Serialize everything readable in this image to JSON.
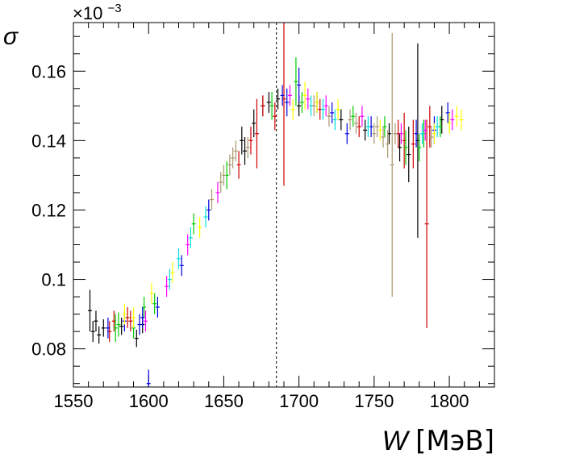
{
  "chart_data": {
    "type": "scatter",
    "title": "",
    "xlabel_main": "W",
    "xlabel_unit": "[МэВ]",
    "ylabel": "σ",
    "y_multiplier_base": "×10",
    "y_multiplier_exp": "−3",
    "xlim": [
      1550,
      1830
    ],
    "ylim": [
      0.069,
      0.174
    ],
    "x_ticks": [
      1550,
      1600,
      1650,
      1700,
      1750,
      1800
    ],
    "x_tick_labels": [
      "1550",
      "1600",
      "1650",
      "1700",
      "1750",
      "1800"
    ],
    "y_ticks": [
      0.08,
      0.1,
      0.12,
      0.14,
      0.16
    ],
    "y_tick_labels": [
      "0.08",
      "0.1",
      "0.12",
      "0.14",
      "0.16"
    ],
    "grid": false,
    "reference_line_x": 1685,
    "series": [
      {
        "color": "#000000",
        "points": [
          [
            1561,
            0.091,
            0.006
          ],
          [
            1563,
            0.085,
            0.003
          ],
          [
            1565,
            0.088,
            0.003
          ],
          [
            1567,
            0.084,
            0.0025
          ],
          [
            1570,
            0.086,
            0.0025
          ],
          [
            1582,
            0.0865,
            0.0025
          ],
          [
            1592,
            0.083,
            0.0025
          ],
          [
            1596,
            0.087,
            0.0025
          ],
          [
            1662,
            0.14,
            0.004
          ],
          [
            1664,
            0.137,
            0.004
          ],
          [
            1670,
            0.145,
            0.004
          ],
          [
            1676,
            0.15,
            0.003
          ],
          [
            1680,
            0.151,
            0.003
          ],
          [
            1686,
            0.152,
            0.003
          ],
          [
            1700,
            0.15,
            0.003
          ],
          [
            1712,
            0.151,
            0.003
          ],
          [
            1728,
            0.146,
            0.003
          ],
          [
            1744,
            0.143,
            0.003
          ],
          [
            1760,
            0.142,
            0.003
          ],
          [
            1767,
            0.138,
            0.004
          ],
          [
            1773,
            0.136,
            0.008
          ],
          [
            1779,
            0.14,
            0.028
          ],
          [
            1795,
            0.146,
            0.004
          ]
        ]
      },
      {
        "color": "#d00000",
        "points": [
          [
            1574,
            0.085,
            0.003
          ],
          [
            1577,
            0.088,
            0.003
          ],
          [
            1586,
            0.089,
            0.003
          ],
          [
            1588,
            0.088,
            0.003
          ],
          [
            1660,
            0.133,
            0.004
          ],
          [
            1668,
            0.14,
            0.004
          ],
          [
            1672,
            0.142,
            0.01
          ],
          [
            1676,
            0.15,
            0.003
          ],
          [
            1684,
            0.147,
            0.004
          ],
          [
            1690,
            0.152,
            0.025
          ],
          [
            1714,
            0.149,
            0.003
          ],
          [
            1740,
            0.144,
            0.003
          ],
          [
            1766,
            0.142,
            0.004
          ],
          [
            1770,
            0.14,
            0.008
          ],
          [
            1776,
            0.139,
            0.007
          ],
          [
            1785,
            0.116,
            0.03
          ],
          [
            1787,
            0.144,
            0.006
          ]
        ]
      },
      {
        "color": "#00cc00",
        "points": [
          [
            1578,
            0.086,
            0.004
          ],
          [
            1580,
            0.087,
            0.0035
          ],
          [
            1590,
            0.086,
            0.003
          ],
          [
            1597,
            0.092,
            0.003
          ],
          [
            1604,
            0.093,
            0.003
          ],
          [
            1630,
            0.116,
            0.003
          ],
          [
            1652,
            0.13,
            0.004
          ],
          [
            1682,
            0.15,
            0.004
          ],
          [
            1698,
            0.157,
            0.007
          ],
          [
            1702,
            0.151,
            0.003
          ],
          [
            1736,
            0.147,
            0.003
          ],
          [
            1757,
            0.144,
            0.003
          ],
          [
            1771,
            0.138,
            0.005
          ],
          [
            1780,
            0.138,
            0.004
          ],
          [
            1783,
            0.142,
            0.004
          ],
          [
            1794,
            0.144,
            0.003
          ]
        ]
      },
      {
        "color": "#0000dd",
        "points": [
          [
            1573,
            0.086,
            0.003
          ],
          [
            1584,
            0.088,
            0.003
          ],
          [
            1594,
            0.087,
            0.003
          ],
          [
            1596,
            0.089,
            0.003
          ],
          [
            1600,
            0.07,
            0.004
          ],
          [
            1606,
            0.092,
            0.003
          ],
          [
            1622,
            0.104,
            0.003
          ],
          [
            1640,
            0.12,
            0.003
          ],
          [
            1689,
            0.153,
            0.003
          ],
          [
            1692,
            0.151,
            0.004
          ],
          [
            1700,
            0.156,
            0.005
          ],
          [
            1722,
            0.148,
            0.003
          ],
          [
            1732,
            0.142,
            0.003
          ],
          [
            1748,
            0.144,
            0.003
          ],
          [
            1778,
            0.142,
            0.004
          ],
          [
            1790,
            0.143,
            0.004
          ],
          [
            1799,
            0.148,
            0.003
          ]
        ]
      },
      {
        "color": "#ff00ff",
        "points": [
          [
            1598,
            0.088,
            0.003
          ],
          [
            1612,
            0.098,
            0.003
          ],
          [
            1626,
            0.11,
            0.003
          ],
          [
            1646,
            0.125,
            0.003
          ],
          [
            1694,
            0.153,
            0.003
          ],
          [
            1706,
            0.152,
            0.003
          ],
          [
            1718,
            0.15,
            0.003
          ],
          [
            1742,
            0.147,
            0.003
          ],
          [
            1768,
            0.142,
            0.003
          ],
          [
            1784,
            0.143,
            0.003
          ],
          [
            1802,
            0.146,
            0.003
          ]
        ]
      },
      {
        "color": "#ffff00",
        "points": [
          [
            1584,
            0.09,
            0.003
          ],
          [
            1590,
            0.089,
            0.003
          ],
          [
            1602,
            0.096,
            0.003
          ],
          [
            1616,
            0.102,
            0.003
          ],
          [
            1634,
            0.115,
            0.003
          ],
          [
            1696,
            0.149,
            0.003
          ],
          [
            1704,
            0.153,
            0.004
          ],
          [
            1712,
            0.151,
            0.003
          ],
          [
            1726,
            0.149,
            0.003
          ],
          [
            1754,
            0.143,
            0.003
          ],
          [
            1790,
            0.142,
            0.003
          ],
          [
            1800,
            0.145,
            0.003
          ],
          [
            1805,
            0.147,
            0.003
          ],
          [
            1808,
            0.146,
            0.003
          ]
        ]
      },
      {
        "color": "#00e0e0",
        "points": [
          [
            1614,
            0.1,
            0.003
          ],
          [
            1620,
            0.106,
            0.003
          ],
          [
            1628,
            0.112,
            0.003
          ],
          [
            1638,
            0.118,
            0.003
          ],
          [
            1708,
            0.15,
            0.003
          ],
          [
            1716,
            0.149,
            0.003
          ],
          [
            1724,
            0.146,
            0.003
          ],
          [
            1746,
            0.144,
            0.003
          ],
          [
            1782,
            0.142,
            0.003
          ],
          [
            1792,
            0.144,
            0.003
          ]
        ]
      },
      {
        "color": "#a89870",
        "points": [
          [
            1642,
            0.123,
            0.003
          ],
          [
            1648,
            0.128,
            0.003
          ],
          [
            1650,
            0.13,
            0.003
          ],
          [
            1654,
            0.133,
            0.003
          ],
          [
            1656,
            0.135,
            0.003
          ],
          [
            1658,
            0.137,
            0.003
          ],
          [
            1666,
            0.138,
            0.003
          ],
          [
            1710,
            0.15,
            0.003
          ],
          [
            1720,
            0.147,
            0.003
          ],
          [
            1734,
            0.146,
            0.003
          ],
          [
            1738,
            0.145,
            0.003
          ],
          [
            1750,
            0.142,
            0.003
          ],
          [
            1752,
            0.144,
            0.003
          ],
          [
            1756,
            0.141,
            0.003
          ],
          [
            1759,
            0.139,
            0.004
          ],
          [
            1762,
            0.133,
            0.038
          ],
          [
            1764,
            0.142,
            0.003
          ],
          [
            1788,
            0.141,
            0.003
          ]
        ]
      }
    ]
  }
}
